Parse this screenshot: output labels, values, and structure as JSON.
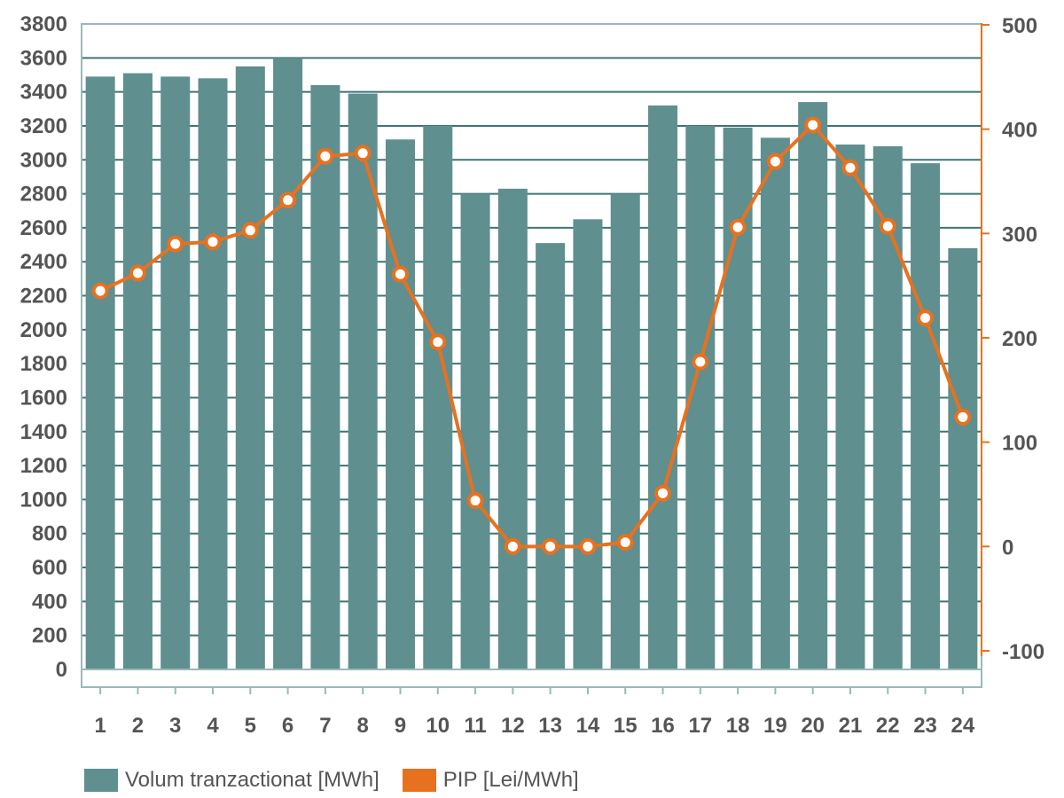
{
  "chart_data": {
    "type": "bar",
    "categories": [
      "1",
      "2",
      "3",
      "4",
      "5",
      "6",
      "7",
      "8",
      "9",
      "10",
      "11",
      "12",
      "13",
      "14",
      "15",
      "16",
      "17",
      "18",
      "19",
      "20",
      "21",
      "22",
      "23",
      "24"
    ],
    "series": [
      {
        "name": "Volum tranzactionat [MWh]",
        "type": "bar",
        "axis": "left",
        "color": "#5f8f8f",
        "values": [
          3490,
          3510,
          3490,
          3480,
          3550,
          3600,
          3440,
          3390,
          3120,
          3200,
          2800,
          2830,
          2510,
          2650,
          2800,
          3320,
          3200,
          3190,
          3130,
          3340,
          3090,
          3080,
          2980,
          2480
        ]
      },
      {
        "name": "PIP [Lei/MWh]",
        "type": "line",
        "axis": "right",
        "color": "#e8711f",
        "values": [
          245,
          262,
          290,
          292,
          303,
          332,
          374,
          377,
          261,
          196,
          44,
          0,
          0,
          0,
          4,
          51,
          177,
          306,
          369,
          404,
          363,
          307,
          219,
          124
        ]
      }
    ],
    "yleft": {
      "ylim": [
        0,
        3800
      ],
      "ticks": [
        "0",
        "200",
        "400",
        "600",
        "800",
        "1000",
        "1200",
        "1400",
        "1600",
        "1800",
        "2000",
        "2200",
        "2400",
        "2600",
        "2800",
        "3000",
        "3200",
        "3400",
        "3600",
        "3800"
      ]
    },
    "yright": {
      "ylim": [
        -100,
        500
      ],
      "ticks": [
        "-100",
        "0",
        "100",
        "200",
        "300",
        "400",
        "500"
      ]
    },
    "grid": true,
    "legend": "bottom-left",
    "colors": {
      "bar": "#5f8f8f",
      "line": "#e8711f",
      "grid": "#3f7474",
      "frame": "#9ab9b9",
      "tick_text": "#555555"
    }
  }
}
